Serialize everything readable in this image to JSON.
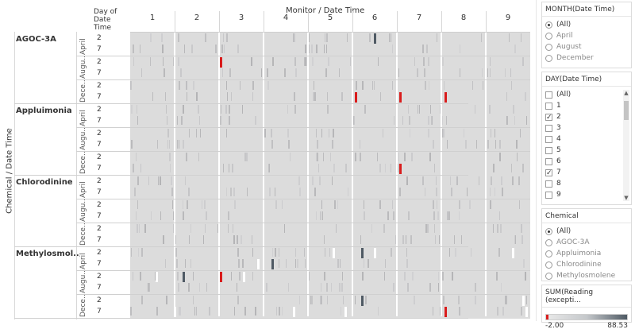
{
  "viz": {
    "top_title": "Monitor / Date Time",
    "header_day_of_date": [
      "Day of",
      "Date",
      "Time"
    ],
    "yaxis_title": "Chemical / Date Time",
    "monitors": [
      "1",
      "2",
      "3",
      "4",
      "5",
      "6",
      "7",
      "8",
      "9"
    ],
    "chemicals": [
      {
        "name": "AGOC-3A",
        "months": [
          "April",
          "Augu..",
          "Dece.."
        ]
      },
      {
        "name": "Appluimonia",
        "months": [
          "April",
          "Augu..",
          "Dece.."
        ]
      },
      {
        "name": "Chlorodinine",
        "months": [
          "April",
          "Augu..",
          "Dece.."
        ]
      },
      {
        "name": "Methylosmol..",
        "months": [
          "April",
          "Augu..",
          "Dece.."
        ]
      }
    ],
    "days": [
      "2",
      "7"
    ],
    "colors": {
      "base": "#dcdcdc",
      "dark": "#4f5a64",
      "red": "#d91c1c",
      "white": "#ffffff"
    }
  },
  "filters": {
    "month": {
      "title": "MONTH(Date Time)",
      "options": [
        "(All)",
        "April",
        "August",
        "December"
      ],
      "selected": "(All)"
    },
    "day": {
      "title": "DAY(Date Time)",
      "options": [
        "(All)",
        "1",
        "2",
        "3",
        "4",
        "5",
        "6",
        "7",
        "8",
        "9"
      ],
      "checked": [
        "2",
        "7"
      ]
    },
    "chemical": {
      "title": "Chemical",
      "options": [
        "(All)",
        "AGOC-3A",
        "Appluimonia",
        "Chlorodinine",
        "Methylosmolene"
      ],
      "selected": "(All)"
    },
    "legend": {
      "title": "SUM(Reading (excepti...",
      "min": "-2.00",
      "max": "88.53"
    }
  }
}
